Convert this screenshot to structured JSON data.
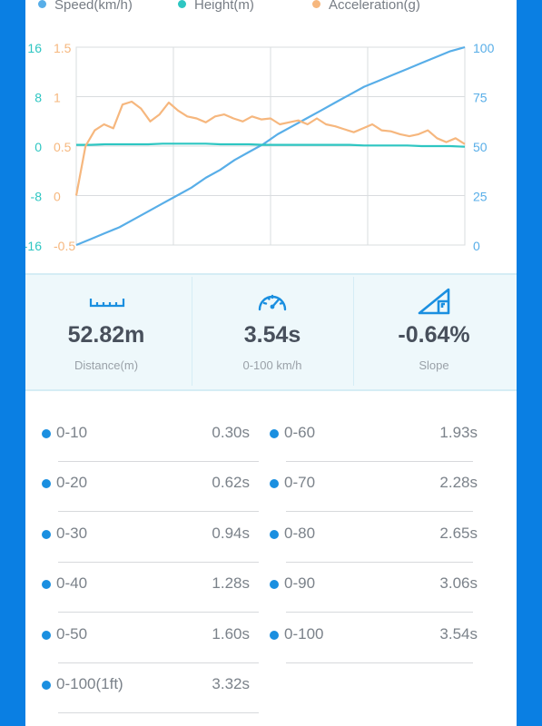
{
  "legend": [
    {
      "name": "Speed(km/h)",
      "color": "#58aee8"
    },
    {
      "name": "Height(m)",
      "color": "#2ec6c2"
    },
    {
      "name": "Acceleration(g)",
      "color": "#f6b77e"
    }
  ],
  "chart_data": {
    "type": "line",
    "axes": {
      "height_ticks": [
        "16",
        "8",
        "0",
        "-8",
        "-16"
      ],
      "acceleration_ticks": [
        "1.5",
        "1",
        "0.5",
        "0",
        "-0.5"
      ],
      "speed_ticks": [
        "100",
        "75",
        "50",
        "25",
        "0"
      ]
    },
    "height_range": [
      -16,
      16
    ],
    "acceleration_range": [
      -0.5,
      1.5
    ],
    "speed_range": [
      0,
      100
    ],
    "grid": true,
    "x_divisions": 4,
    "series": [
      {
        "name": "Speed(km/h)",
        "axis": "speed",
        "color": "#58aee8",
        "values": [
          0,
          3,
          6,
          9,
          13,
          17,
          21,
          25,
          29,
          34,
          38,
          43,
          47,
          51,
          56,
          60,
          64,
          68,
          72,
          76,
          80,
          83,
          86,
          89,
          92,
          95,
          98,
          100
        ]
      },
      {
        "name": "Height(m)",
        "axis": "height",
        "color": "#2ec6c2",
        "values": [
          0.2,
          0.2,
          0.3,
          0.3,
          0.3,
          0.3,
          0.4,
          0.4,
          0.4,
          0.4,
          0.3,
          0.3,
          0.3,
          0.2,
          0.2,
          0.2,
          0.2,
          0.2,
          0.2,
          0.2,
          0.1,
          0.1,
          0.1,
          0.1,
          0.0,
          0.0,
          0.0,
          -0.1
        ]
      },
      {
        "name": "Acceleration(g)",
        "axis": "acceleration",
        "color": "#f6b77e",
        "values": [
          0,
          0.5,
          0.66,
          0.72,
          0.68,
          0.92,
          0.95,
          0.88,
          0.75,
          0.82,
          0.94,
          0.86,
          0.8,
          0.78,
          0.74,
          0.8,
          0.82,
          0.78,
          0.75,
          0.8,
          0.77,
          0.78,
          0.72,
          0.74,
          0.76,
          0.72,
          0.78,
          0.72,
          0.7,
          0.67,
          0.64,
          0.68,
          0.72,
          0.66,
          0.65,
          0.62,
          0.6,
          0.62,
          0.66,
          0.58,
          0.54,
          0.58,
          0.52
        ]
      }
    ]
  },
  "stats": [
    {
      "icon": "ruler-icon",
      "value": "52.82m",
      "label": "Distance(m)"
    },
    {
      "icon": "speedometer-icon",
      "value": "3.54s",
      "label": "0-100 km/h"
    },
    {
      "icon": "slope-icon",
      "value": "-0.64%",
      "label": "Slope"
    }
  ],
  "splits_left": [
    {
      "label": "0-10",
      "time": "0.30s"
    },
    {
      "label": "0-20",
      "time": "0.62s"
    },
    {
      "label": "0-30",
      "time": "0.94s"
    },
    {
      "label": "0-40",
      "time": "1.28s"
    },
    {
      "label": "0-50",
      "time": "1.60s"
    },
    {
      "label": "0-100(1ft)",
      "time": "3.32s"
    }
  ],
  "splits_right": [
    {
      "label": "0-60",
      "time": "1.93s"
    },
    {
      "label": "0-70",
      "time": "2.28s"
    },
    {
      "label": "0-80",
      "time": "2.65s"
    },
    {
      "label": "0-90",
      "time": "3.06s"
    },
    {
      "label": "0-100",
      "time": "3.54s"
    }
  ],
  "colors": {
    "background": "#0a7fe3",
    "accent": "#1a8fe0",
    "stats_bg": "#eef8fb"
  }
}
